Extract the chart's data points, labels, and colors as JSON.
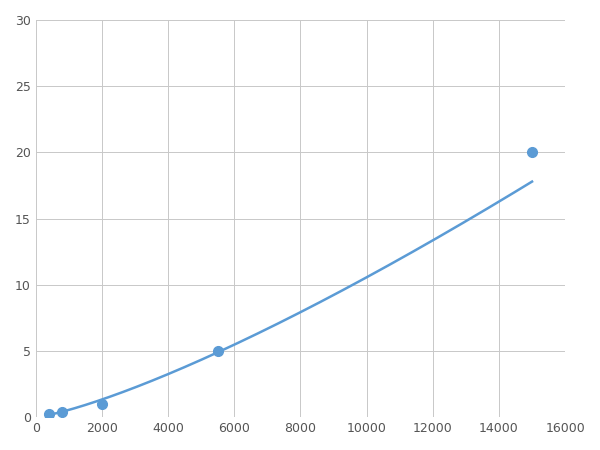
{
  "x_points": [
    400,
    800,
    2000,
    5500,
    15000
  ],
  "y_points": [
    0.2,
    0.4,
    1.0,
    5.0,
    20.0
  ],
  "line_color": "#5b9bd5",
  "marker_color": "#5b9bd5",
  "marker_size": 7,
  "xlim": [
    0,
    16000
  ],
  "ylim": [
    0,
    30
  ],
  "xticks": [
    0,
    2000,
    4000,
    6000,
    8000,
    10000,
    12000,
    14000,
    16000
  ],
  "yticks": [
    0,
    5,
    10,
    15,
    20,
    25,
    30
  ],
  "grid_color": "#c8c8c8",
  "background_color": "#ffffff",
  "line_width": 1.8
}
